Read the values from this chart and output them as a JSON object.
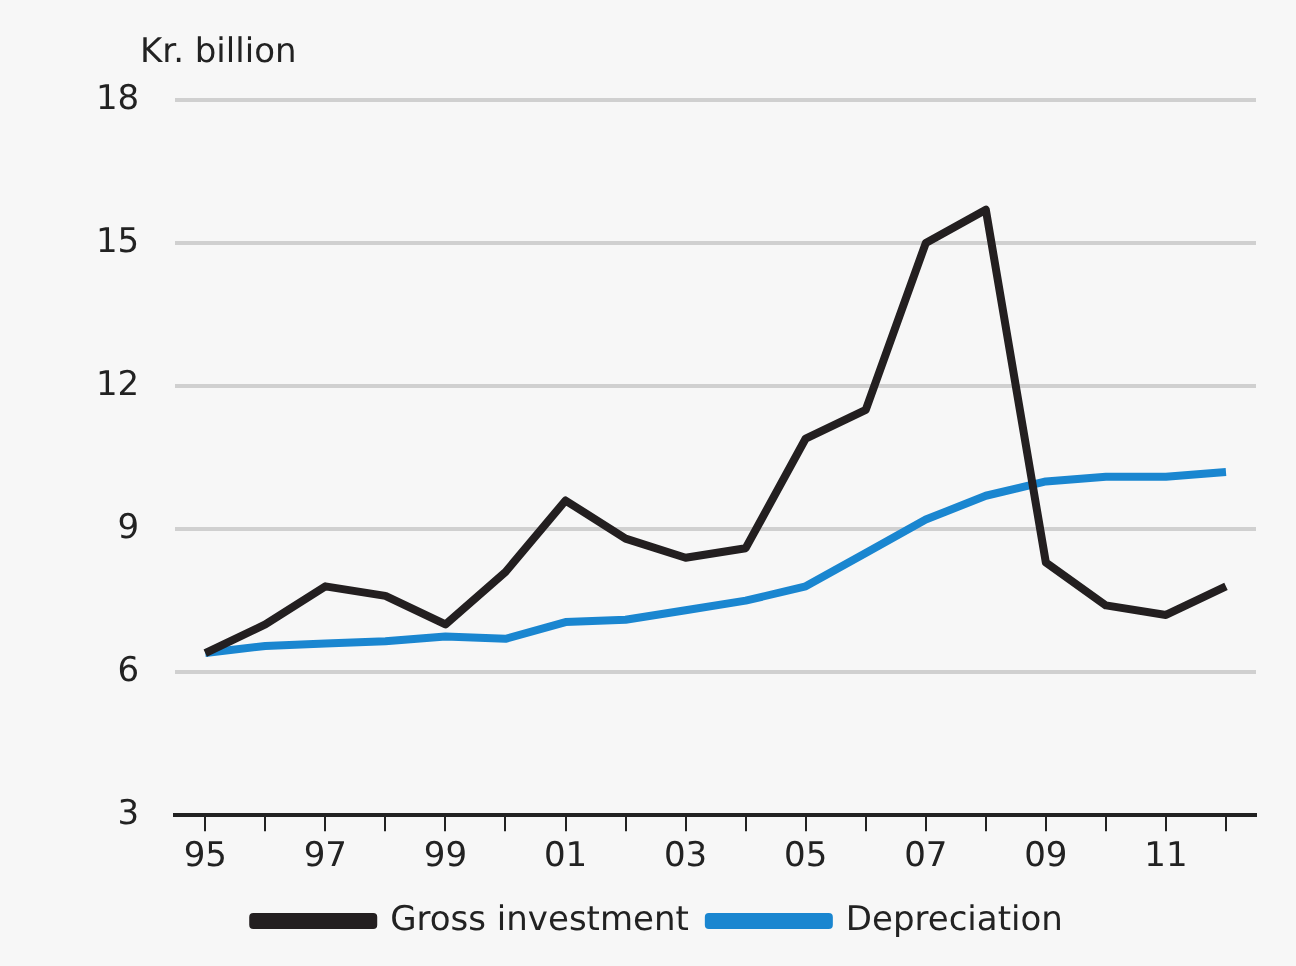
{
  "chart_data": {
    "type": "line",
    "ylabel": "Kr. billion",
    "x": [
      1995,
      1996,
      1997,
      1998,
      1999,
      2000,
      2001,
      2002,
      2003,
      2004,
      2005,
      2006,
      2007,
      2008,
      2009,
      2010,
      2011,
      2012
    ],
    "series": [
      {
        "name": "Gross investment",
        "color": "#231f20",
        "values": [
          6.4,
          7.0,
          7.8,
          7.6,
          7.0,
          8.1,
          9.6,
          8.8,
          8.4,
          8.6,
          10.9,
          11.5,
          15.0,
          15.7,
          8.3,
          7.4,
          7.2,
          7.8
        ]
      },
      {
        "name": "Depreciation",
        "color": "#1a86d0",
        "values": [
          6.4,
          6.55,
          6.6,
          6.65,
          6.75,
          6.7,
          7.05,
          7.1,
          7.3,
          7.5,
          7.8,
          8.5,
          9.2,
          9.7,
          10.0,
          10.1,
          10.1,
          10.2
        ]
      }
    ],
    "xlim": [
      1994.5,
      2012.5
    ],
    "xticks": [
      {
        "value": 1995,
        "label": "95"
      },
      {
        "value": 1996,
        "label": null
      },
      {
        "value": 1997,
        "label": "97"
      },
      {
        "value": 1998,
        "label": null
      },
      {
        "value": 1999,
        "label": "99"
      },
      {
        "value": 2000,
        "label": null
      },
      {
        "value": 2001,
        "label": "01"
      },
      {
        "value": 2002,
        "label": null
      },
      {
        "value": 2003,
        "label": "03"
      },
      {
        "value": 2004,
        "label": null
      },
      {
        "value": 2005,
        "label": "05"
      },
      {
        "value": 2006,
        "label": null
      },
      {
        "value": 2007,
        "label": "07"
      },
      {
        "value": 2008,
        "label": null
      },
      {
        "value": 2009,
        "label": "09"
      },
      {
        "value": 2010,
        "label": null
      },
      {
        "value": 2011,
        "label": "11"
      },
      {
        "value": 2012,
        "label": null
      }
    ],
    "ylim": [
      3,
      18
    ],
    "yticks": [
      3,
      6,
      9,
      12,
      15,
      18
    ],
    "grid": "y",
    "legend": "bottom",
    "marker": "none",
    "line_style": "solid"
  }
}
